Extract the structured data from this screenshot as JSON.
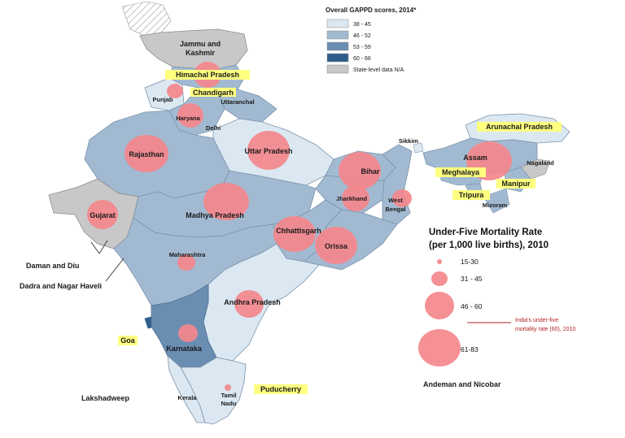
{
  "gappd_legend": {
    "title": "Overall GAPPD scores, 2014*",
    "classes": [
      {
        "label": "38 - 45",
        "color": "#dbe8f2"
      },
      {
        "label": "46 - 52",
        "color": "#a2bad1"
      },
      {
        "label": "53 - 59",
        "color": "#6a8eb2"
      },
      {
        "label": "60 - 66",
        "color": "#2f5e8e"
      },
      {
        "label": "State-level data N/A",
        "color": "#c8c8c8"
      }
    ]
  },
  "mortality_legend": {
    "title_line1": "Under-Five Mortality Rate",
    "title_line2": "(per 1,000 live births), 2010",
    "sizes": [
      {
        "label": "15-30"
      },
      {
        "label": "31 - 45"
      },
      {
        "label": "46 - 60"
      },
      {
        "label": "61-83"
      }
    ],
    "note_line1": "India's under-five",
    "note_line2": "mortality rate (60), 2010",
    "note_color": "#b02020"
  },
  "bubble_color": "#f4878c",
  "states": [
    {
      "id": "jammu-kashmir",
      "name_line1": "Jammu and",
      "name_line2": "Kashmir",
      "gappd": "State-level data N/A"
    },
    {
      "id": "himachal",
      "name": "Himachal Pradesh",
      "highlight": true
    },
    {
      "id": "punjab",
      "name": "Punjab"
    },
    {
      "id": "chandigarh",
      "name": "Chandigarh",
      "highlight": true
    },
    {
      "id": "uttaranchal",
      "name": "Uttaranchal"
    },
    {
      "id": "haryana",
      "name": "Haryana"
    },
    {
      "id": "delhi",
      "name": "Delhi"
    },
    {
      "id": "rajasthan",
      "name": "Rajasthan"
    },
    {
      "id": "uttar-pradesh",
      "name": "Uttar Pradesh"
    },
    {
      "id": "bihar",
      "name": "Bihar"
    },
    {
      "id": "sikkim",
      "name": "Sikkim"
    },
    {
      "id": "arunachal",
      "name": "Arunachal Pradesh",
      "highlight": true
    },
    {
      "id": "assam",
      "name": "Assam"
    },
    {
      "id": "nagaland",
      "name": "Nagaland"
    },
    {
      "id": "meghalaya",
      "name": "Meghalaya",
      "highlight": true
    },
    {
      "id": "manipur",
      "name": "Manipur",
      "highlight": true
    },
    {
      "id": "tripura",
      "name": "Tripura",
      "highlight": true
    },
    {
      "id": "mizoram",
      "name": "Mizoram"
    },
    {
      "id": "gujarat",
      "name": "Gujarat",
      "gappd": "State-level data N/A"
    },
    {
      "id": "madhya-pradesh",
      "name": "Madhya Pradesh"
    },
    {
      "id": "jharkhand",
      "name": "Jharkhand"
    },
    {
      "id": "west-bengal",
      "name_line1": "West",
      "name_line2": "Bengal"
    },
    {
      "id": "chhattisgarh",
      "name": "Chhattisgarh"
    },
    {
      "id": "orissa",
      "name": "Orissa"
    },
    {
      "id": "maharashtra",
      "name": "Maharashtra"
    },
    {
      "id": "andhra",
      "name": "Andhra Pradesh"
    },
    {
      "id": "goa",
      "name": "Goa",
      "highlight": true
    },
    {
      "id": "karnataka",
      "name": "Karnataka"
    },
    {
      "id": "kerala",
      "name": "Kerala"
    },
    {
      "id": "tamil-nadu",
      "name_line1": "Tamil",
      "name_line2": "Nadu"
    },
    {
      "id": "puducherry",
      "name": "Puducherry",
      "highlight": true
    }
  ],
  "union_territories": {
    "daman_diu": "Daman and Diu",
    "dadra": "Dadra and Nagar Haveli",
    "lakshadweep": "Lakshadweep",
    "andaman": "Andeman and Nicobar"
  },
  "highlight_color": "#ffff80"
}
